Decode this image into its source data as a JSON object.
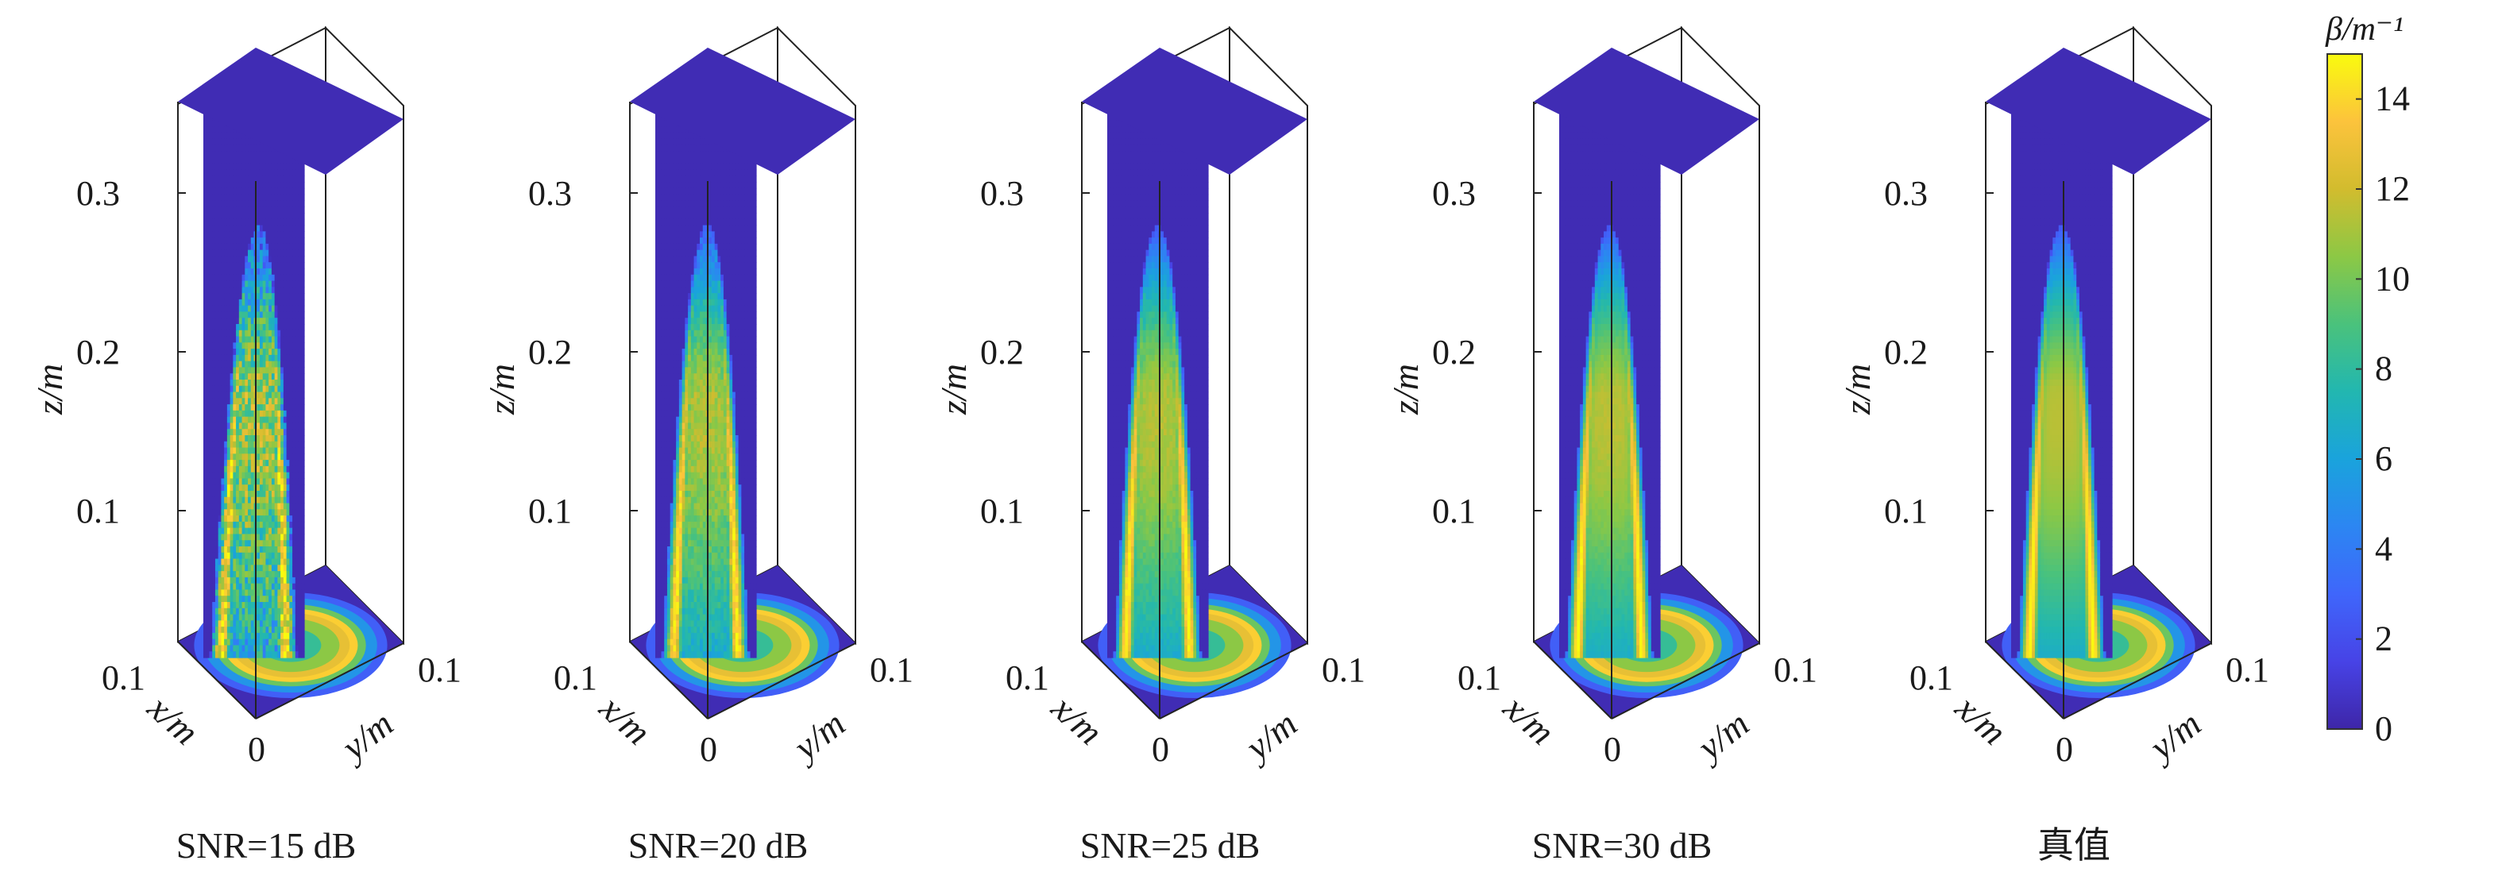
{
  "chart_data": {
    "type": "heatmap",
    "colormap": "parula",
    "panels": [
      {
        "caption": "SNR=15 dB",
        "peak": 14.0,
        "noise": 0.9,
        "tilt": 0.12
      },
      {
        "caption": "SNR=20 dB",
        "peak": 14.6,
        "noise": 0.3,
        "tilt": 0.04
      },
      {
        "caption": "SNR=25 dB",
        "peak": 14.8,
        "noise": 0.15,
        "tilt": 0.0
      },
      {
        "caption": "SNR=30 dB",
        "peak": 15.0,
        "noise": 0.08,
        "tilt": 0.0
      },
      {
        "caption": "真值",
        "peak": 15.0,
        "noise": 0.0,
        "tilt": 0.0
      }
    ],
    "axes": {
      "x": {
        "label": "x/m",
        "ticks": [
          "0",
          "0.1"
        ],
        "range": [
          0,
          0.1
        ]
      },
      "y": {
        "label": "y/m",
        "ticks": [
          "0",
          "0.1"
        ],
        "range": [
          0,
          0.1
        ]
      },
      "z": {
        "label": "z/m",
        "ticks": [
          "0.1",
          "0.2",
          "0.3"
        ],
        "range": [
          0,
          0.34
        ]
      }
    },
    "colorbar": {
      "label": "β/m⁻¹",
      "min": 0,
      "max": 15,
      "ticks": [
        "0",
        "2",
        "4",
        "6",
        "8",
        "10",
        "12",
        "14"
      ]
    }
  }
}
